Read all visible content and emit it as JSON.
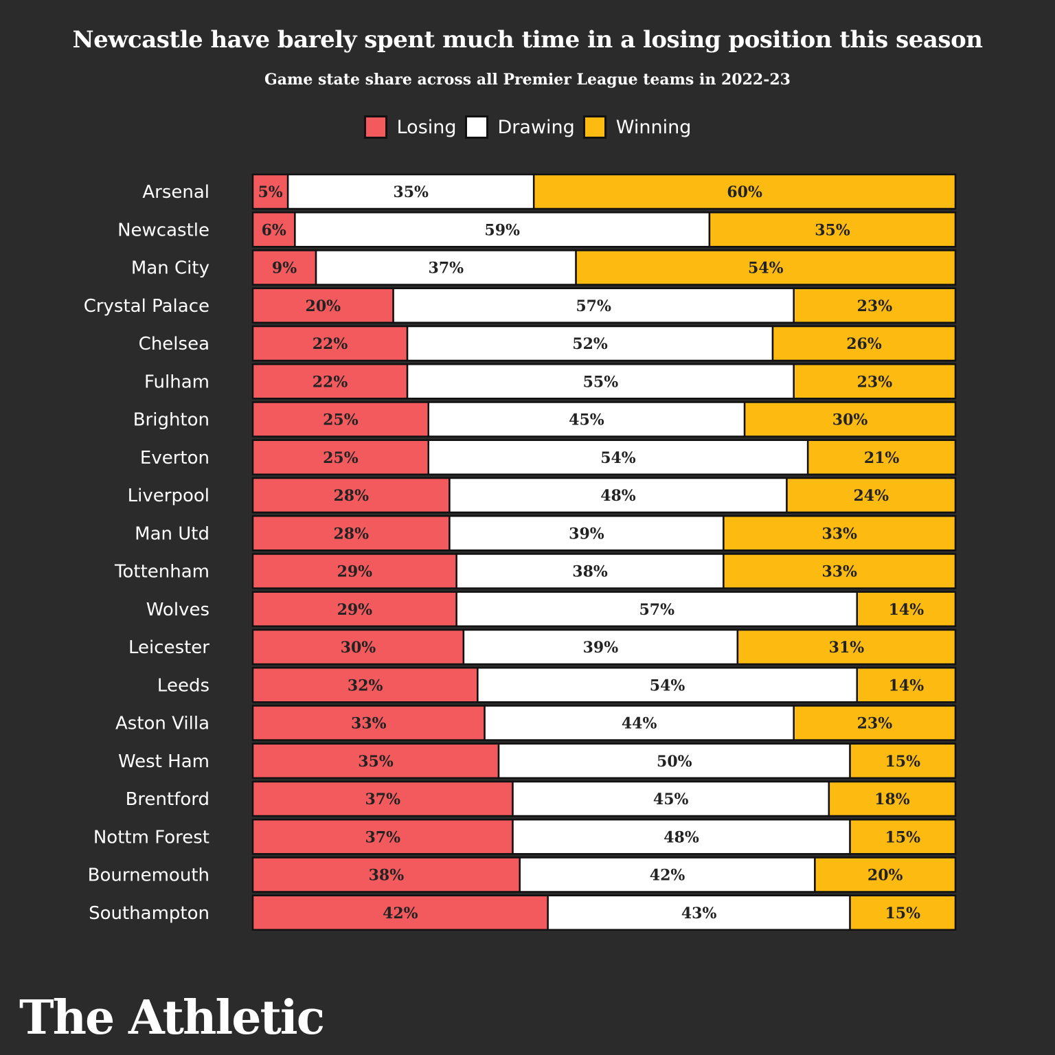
{
  "chart_data": {
    "type": "bar",
    "orientation": "horizontal",
    "stacked": true,
    "title": "Newcastle have barely spent much time in a losing position this season",
    "subtitle": "Game state share across all Premier League teams in 2022-23",
    "legend_position": "top-center",
    "categories": [
      "Arsenal",
      "Newcastle",
      "Man City",
      "Crystal Palace",
      "Chelsea",
      "Fulham",
      "Brighton",
      "Everton",
      "Liverpool",
      "Man Utd",
      "Tottenham",
      "Wolves",
      "Leicester",
      "Leeds",
      "Aston Villa",
      "West Ham",
      "Brentford",
      "Nottm Forest",
      "Bournemouth",
      "Southampton"
    ],
    "series": [
      {
        "name": "Losing",
        "color": "#f25a5e",
        "values": [
          5,
          6,
          9,
          20,
          22,
          22,
          25,
          25,
          28,
          28,
          29,
          29,
          30,
          32,
          33,
          35,
          37,
          37,
          38,
          42
        ]
      },
      {
        "name": "Drawing",
        "color": "#ffffff",
        "values": [
          35,
          59,
          37,
          57,
          52,
          55,
          45,
          54,
          48,
          39,
          38,
          57,
          39,
          54,
          44,
          50,
          45,
          48,
          42,
          43
        ]
      },
      {
        "name": "Winning",
        "color": "#fdbb12",
        "values": [
          60,
          35,
          54,
          23,
          26,
          23,
          30,
          21,
          24,
          33,
          33,
          14,
          31,
          14,
          23,
          15,
          18,
          15,
          20,
          15
        ]
      }
    ],
    "value_suffix": "%"
  },
  "brand": "The Athletic"
}
